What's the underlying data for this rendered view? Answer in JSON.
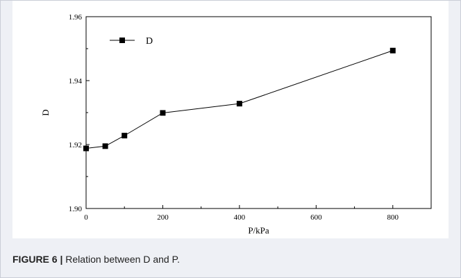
{
  "caption": {
    "label": "FIGURE 6",
    "separator": "|",
    "text": "Relation between D and P."
  },
  "chart_data": {
    "type": "line",
    "title": "",
    "xlabel": "P/kPa",
    "ylabel": "D",
    "xlim": [
      0,
      900
    ],
    "ylim": [
      1.9,
      1.96
    ],
    "xticks": [
      0,
      200,
      400,
      600,
      800
    ],
    "yticks": [
      1.9,
      1.92,
      1.94,
      1.96
    ],
    "xtick_labels": [
      "0",
      "200",
      "400",
      "600",
      "800"
    ],
    "ytick_labels": [
      "1.90",
      "1.92",
      "1.94",
      "1.96"
    ],
    "grid": false,
    "legend": {
      "position": "top-left",
      "entries": [
        "D"
      ]
    },
    "series": [
      {
        "name": "D",
        "marker": "square",
        "color": "#000000",
        "x": [
          0,
          50,
          100,
          200,
          400,
          800
        ],
        "y": [
          1.9188,
          1.9195,
          1.9228,
          1.9299,
          1.9328,
          1.9494
        ]
      }
    ]
  }
}
